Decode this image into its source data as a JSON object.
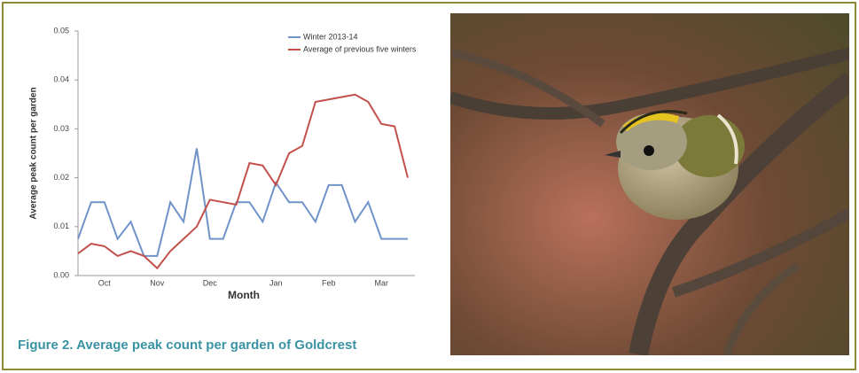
{
  "chart_data": {
    "type": "line",
    "caption": "Figure 2. Average peak count per garden of Goldcrest",
    "xlabel": "Month",
    "ylabel": "Average peak count per garden",
    "categories": [
      null,
      null,
      "Oct",
      null,
      null,
      null,
      "Nov",
      null,
      null,
      null,
      "Dec",
      null,
      null,
      null,
      null,
      "Jan",
      null,
      null,
      null,
      "Feb",
      null,
      null,
      null,
      "Mar",
      null,
      null
    ],
    "ylim": [
      0,
      0.05
    ],
    "yticks": [
      {
        "value": 0,
        "label": "0.00"
      },
      0.01,
      0.02,
      0.03,
      0.04,
      0.05
    ],
    "legend": "upper right",
    "series": [
      {
        "name": "Winter 2013-14",
        "color": "#6f93c9",
        "values": [
          0.0075,
          0.015,
          0.015,
          0.0075,
          0.011,
          0.004,
          0.004,
          0.015,
          0.011,
          0.026,
          0.0075,
          0.0075,
          0.015,
          0.015,
          0.011,
          0.019,
          0.015,
          0.015,
          0.011,
          0.0185,
          0.0185,
          0.011,
          0.015,
          0.0075,
          0.0075,
          0.0075
        ]
      },
      {
        "name": "Average of previous five winters",
        "color": "#c4504b",
        "values": [
          0.0045,
          0.0065,
          0.006,
          0.004,
          0.005,
          0.004,
          0.0015,
          0.005,
          0.0075,
          0.01,
          0.0155,
          0.015,
          0.0145,
          0.023,
          0.0225,
          0.0185,
          0.025,
          0.0265,
          0.0355,
          0.036,
          0.0365,
          0.037,
          0.0355,
          0.031,
          0.0305,
          0.02
        ]
      }
    ]
  }
}
